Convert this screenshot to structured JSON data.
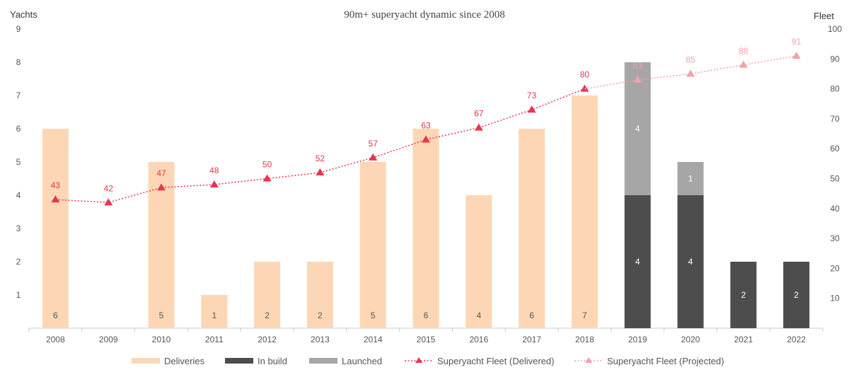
{
  "chart_data": {
    "type": "bar",
    "title": "90m+ superyacht dynamic since 2008",
    "ylabel": "Yachts",
    "y2label": "Fleet",
    "ylim": [
      0,
      9
    ],
    "y2lim": [
      0,
      100
    ],
    "yticks": [
      1,
      2,
      3,
      4,
      5,
      6,
      7,
      8,
      9
    ],
    "y2ticks": [
      10,
      20,
      30,
      40,
      50,
      60,
      70,
      80,
      90,
      100
    ],
    "categories": [
      "2008",
      "2009",
      "2010",
      "2011",
      "2012",
      "2013",
      "2014",
      "2015",
      "2016",
      "2017",
      "2018",
      "2019",
      "2020",
      "2021",
      "2022"
    ],
    "series": [
      {
        "name": "Deliveries",
        "kind": "bar",
        "color": "#fdd7b5",
        "values": [
          6,
          0,
          5,
          1,
          2,
          2,
          5,
          6,
          4,
          6,
          7,
          0,
          0,
          0,
          0
        ]
      },
      {
        "name": "In build",
        "kind": "bar",
        "color": "#4d4d4d",
        "values": [
          0,
          0,
          0,
          0,
          0,
          0,
          0,
          0,
          0,
          0,
          0,
          4,
          4,
          2,
          2
        ]
      },
      {
        "name": "Launched",
        "kind": "bar",
        "color": "#a6a6a6",
        "values": [
          0,
          0,
          0,
          0,
          0,
          0,
          0,
          0,
          0,
          0,
          0,
          4,
          1,
          0,
          0
        ]
      },
      {
        "name": "Superyacht Fleet (Delivered)",
        "kind": "line",
        "axis": "right",
        "color": "#e8354f",
        "values": [
          43,
          42,
          47,
          48,
          50,
          52,
          57,
          63,
          67,
          73,
          80,
          null,
          null,
          null,
          null
        ]
      },
      {
        "name": "Superyacht Fleet (Projected)",
        "kind": "line",
        "axis": "right",
        "color": "#f4a0ad",
        "values": [
          null,
          null,
          null,
          null,
          null,
          null,
          null,
          null,
          null,
          null,
          80,
          83,
          85,
          88,
          91
        ]
      }
    ],
    "legend": "bottom",
    "grid": false
  }
}
